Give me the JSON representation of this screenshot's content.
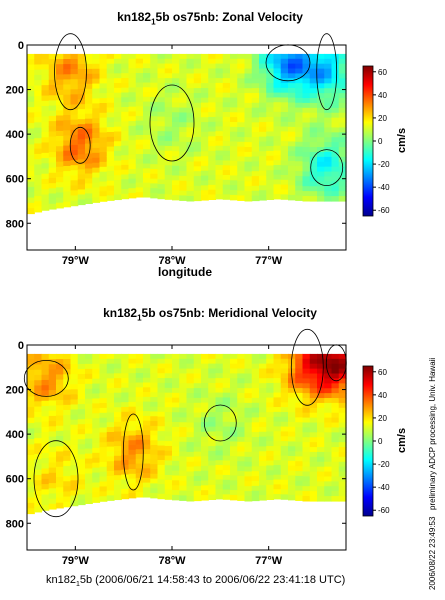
{
  "chart_data": [
    {
      "type": "heatmap",
      "title_main": "kn182",
      "title_sub": "1",
      "title_rest": "5b os75nb: Zonal Velocity",
      "xlabel": "longitude",
      "ylabel": "",
      "xticks": [
        {
          "value": -79,
          "label": "79°W"
        },
        {
          "value": -78,
          "label": "78°W"
        },
        {
          "value": -77,
          "label": "77°W"
        }
      ],
      "yticks": [
        0,
        200,
        400,
        600,
        800
      ],
      "xlim": [
        -79.5,
        -76.2
      ],
      "ylim": [
        920,
        0
      ],
      "colorbar": {
        "label": "cm/s",
        "ticks": [
          60,
          40,
          20,
          0,
          -20,
          -40,
          -60
        ],
        "range": [
          -65,
          65
        ]
      },
      "data_bottom_depth": [
        [
          -79.5,
          760
        ],
        [
          -79.3,
          740
        ],
        [
          -79.0,
          720
        ],
        [
          -78.7,
          700
        ],
        [
          -78.5,
          690
        ],
        [
          -78.3,
          680
        ],
        [
          -78.1,
          690
        ],
        [
          -77.8,
          700
        ],
        [
          -77.5,
          690
        ],
        [
          -77.2,
          700
        ],
        [
          -76.9,
          690
        ],
        [
          -76.6,
          700
        ],
        [
          -76.2,
          700
        ]
      ],
      "features": [
        {
          "lon": -78.95,
          "depth": 450,
          "value": 35,
          "note": "band"
        },
        {
          "lon": -79.05,
          "depth": 120,
          "value": 30
        },
        {
          "lon": -76.8,
          "depth": 80,
          "value": -30
        },
        {
          "lon": -76.4,
          "depth": 120,
          "value": -20
        },
        {
          "lon": -76.4,
          "depth": 550,
          "value": -15
        },
        {
          "lon": -78.0,
          "depth": 350,
          "value": 5
        }
      ]
    },
    {
      "type": "heatmap",
      "title_main": "kn182",
      "title_sub": "1",
      "title_rest": "5b os75nb: Meridional Velocity",
      "xlabel": "",
      "ylabel": "",
      "xticks": [
        {
          "value": -79,
          "label": "79°W"
        },
        {
          "value": -78,
          "label": "78°W"
        },
        {
          "value": -77,
          "label": "77°W"
        }
      ],
      "yticks": [
        0,
        200,
        400,
        600,
        800
      ],
      "xlim": [
        -79.5,
        -76.2
      ],
      "ylim": [
        920,
        0
      ],
      "colorbar": {
        "label": "cm/s",
        "ticks": [
          60,
          40,
          20,
          0,
          -20,
          -40,
          -60
        ],
        "range": [
          -65,
          65
        ]
      },
      "data_bottom_depth": [
        [
          -79.5,
          760
        ],
        [
          -79.3,
          740
        ],
        [
          -79.0,
          720
        ],
        [
          -78.7,
          700
        ],
        [
          -78.5,
          690
        ],
        [
          -78.3,
          680
        ],
        [
          -78.1,
          690
        ],
        [
          -77.8,
          700
        ],
        [
          -77.5,
          690
        ],
        [
          -77.2,
          700
        ],
        [
          -76.9,
          690
        ],
        [
          -76.6,
          700
        ],
        [
          -76.2,
          700
        ]
      ],
      "features": [
        {
          "lon": -76.3,
          "depth": 80,
          "value": 55
        },
        {
          "lon": -76.6,
          "depth": 100,
          "value": 35
        },
        {
          "lon": -79.3,
          "depth": 150,
          "value": 30
        },
        {
          "lon": -78.4,
          "depth": 480,
          "value": 30
        },
        {
          "lon": -77.5,
          "depth": 350,
          "value": 5
        },
        {
          "lon": -79.2,
          "depth": 600,
          "value": 20
        }
      ]
    }
  ],
  "footer_main": "kn182",
  "footer_sub": "1",
  "footer_rest": "5b (2006/06/21 14:58:43 to 2006/06/22 23:41:18 UTC)",
  "side_label": "preliminary ADCP processing,  Univ. Hawaii",
  "side_timestamp": "2006/08/22 23:49:53",
  "colors": {
    "colormap": [
      "#00008f",
      "#0000ff",
      "#0080ff",
      "#00ffff",
      "#80ff80",
      "#ffff00",
      "#ff8000",
      "#ff0000",
      "#800000"
    ]
  }
}
